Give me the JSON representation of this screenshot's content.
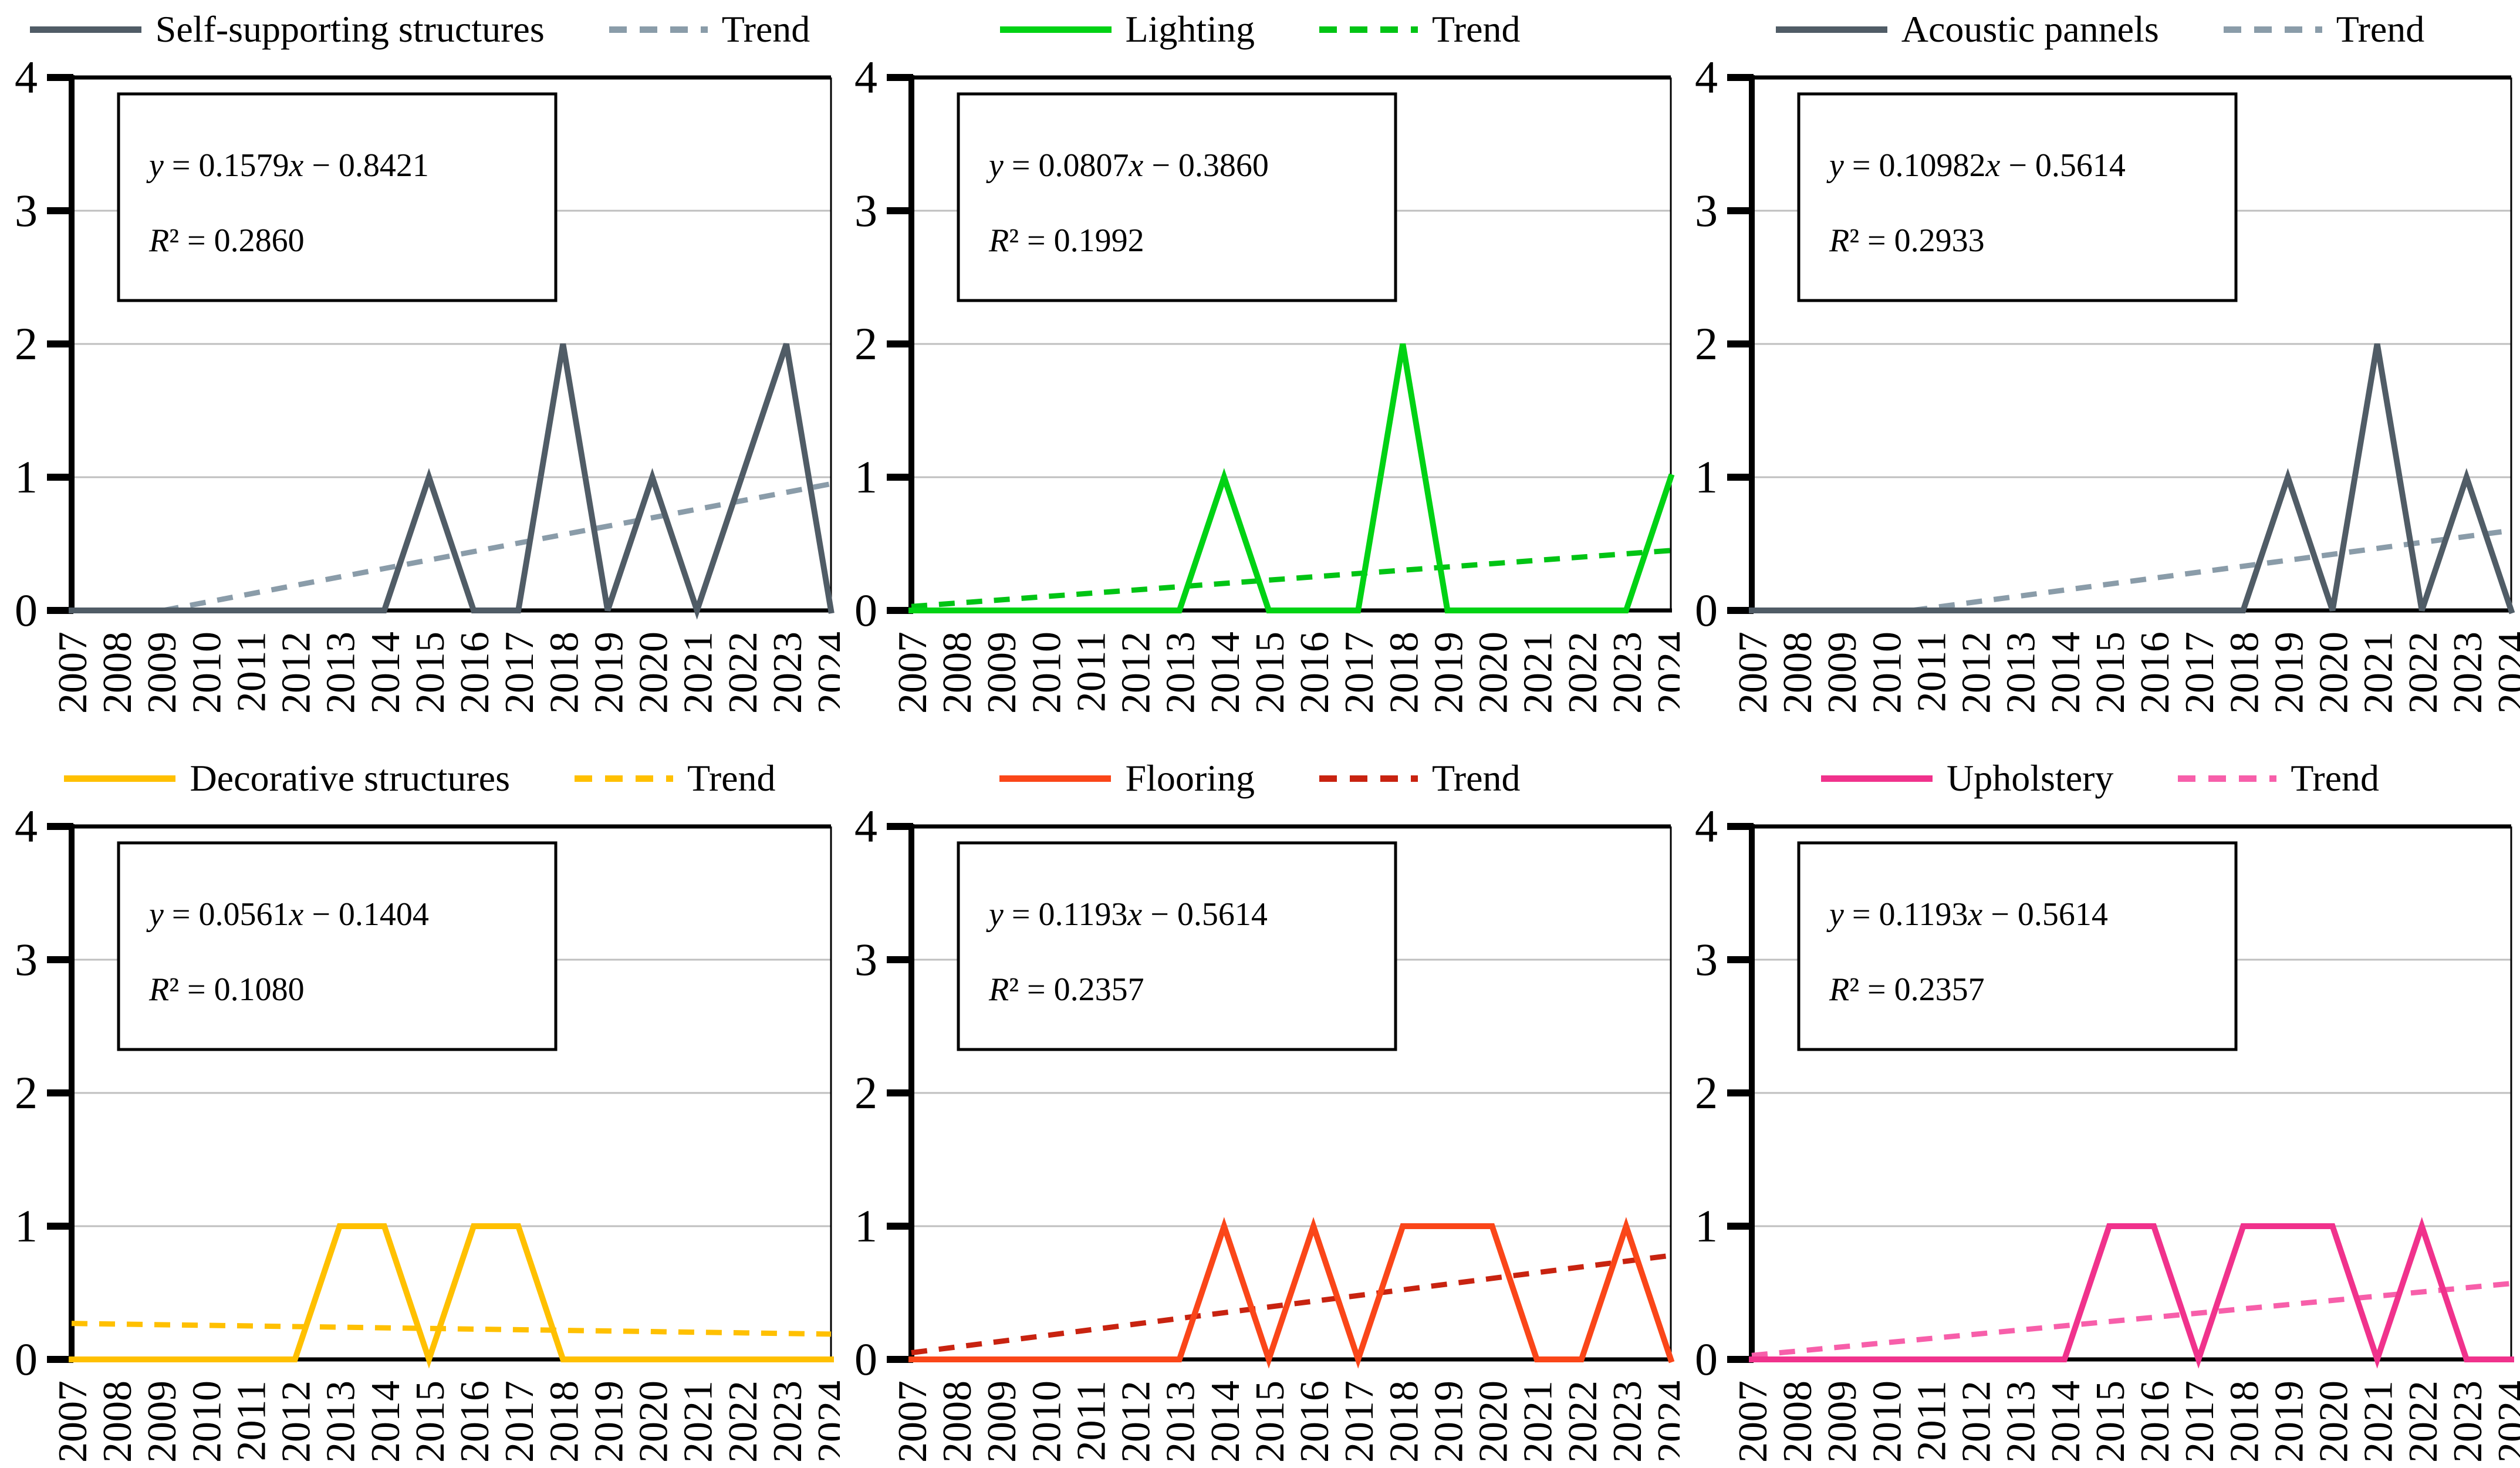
{
  "figure": {
    "background": "#FFFFFF",
    "layout": "2 rows x 3 columns of line charts",
    "axis_color": "#000000",
    "gridline_color": "#BFBFBF"
  },
  "chart_data": {
    "shared": {
      "type": "line",
      "x_years": [
        2007,
        2008,
        2009,
        2010,
        2011,
        2012,
        2013,
        2014,
        2015,
        2016,
        2017,
        2018,
        2019,
        2020,
        2021,
        2022,
        2023,
        2024
      ],
      "ylim": [
        0,
        4
      ],
      "y_ticks": [
        0,
        1,
        2,
        3,
        4
      ],
      "gridlines": "horizontal at 1, 2 and 3",
      "legend_position": "top-center",
      "trend_style": "dashed straight regression line"
    },
    "charts": [
      {
        "title": "Self-supporting structures",
        "trend_label": "Trend",
        "series_color": "#505C66",
        "trend_color": "#8A9CA9",
        "equation": "y = 0.1579x − 0.8421",
        "r_squared": "R² = 0.2860",
        "values": [
          0,
          0,
          0,
          0,
          0,
          0,
          0,
          0,
          1,
          0,
          0,
          2,
          0,
          1,
          0,
          1,
          2,
          0
        ],
        "trend_endpoints_2007_2024": [
          -0.13,
          0.95
        ]
      },
      {
        "title": "Lighting",
        "trend_label": "Trend",
        "series_color": "#00D214",
        "trend_color": "#00C414",
        "equation": "y = 0.0807x − 0.3860",
        "r_squared": "R² = 0.1992",
        "values": [
          0,
          0,
          0,
          0,
          0,
          0,
          0,
          1,
          0,
          0,
          0,
          2,
          0,
          0,
          0,
          0,
          0,
          1
        ],
        "trend_endpoints_2007_2024": [
          0.03,
          0.45
        ]
      },
      {
        "title": "Acoustic pannels",
        "trend_label": "Trend",
        "series_color": "#505C66",
        "trend_color": "#8A9CA9",
        "equation": "y = 0.10982x − 0.5614",
        "r_squared": "R² = 0.2933",
        "values": [
          0,
          0,
          0,
          0,
          0,
          0,
          0,
          0,
          0,
          0,
          0,
          0,
          1,
          0,
          2,
          0,
          1,
          0
        ],
        "trend_endpoints_2007_2024": [
          -0.16,
          0.6
        ]
      },
      {
        "title": "Decorative structures",
        "trend_label": "Trend",
        "series_color": "#FFC000",
        "trend_color": "#FFC000",
        "equation": "y = 0.0561x − 0.1404",
        "r_squared": "R² = 0.1080",
        "values": [
          0,
          0,
          0,
          0,
          0,
          0,
          1,
          1,
          0,
          1,
          1,
          0,
          0,
          0,
          0,
          0,
          0,
          0
        ],
        "trend_endpoints_2007_2024": [
          0.27,
          0.19
        ]
      },
      {
        "title": "Flooring",
        "trend_label": "Trend",
        "series_color": "#FA4619",
        "trend_color": "#C82310",
        "equation": "y = 0.1193x − 0.5614",
        "r_squared": "R² = 0.2357",
        "values": [
          0,
          0,
          0,
          0,
          0,
          0,
          0,
          1,
          0,
          1,
          0,
          1,
          1,
          1,
          0,
          0,
          1,
          0
        ],
        "trend_endpoints_2007_2024": [
          0.05,
          0.78
        ]
      },
      {
        "title": "Upholstery",
        "trend_label": "Trend",
        "series_color": "#F0328C",
        "trend_color": "#F75FAA",
        "equation": "y = 0.1193x − 0.5614",
        "r_squared": "R² = 0.2357",
        "values": [
          0,
          0,
          0,
          0,
          0,
          0,
          0,
          0,
          1,
          1,
          0,
          1,
          1,
          1,
          0,
          1,
          0,
          0
        ],
        "trend_endpoints_2007_2024": [
          0.03,
          0.57
        ]
      }
    ]
  }
}
